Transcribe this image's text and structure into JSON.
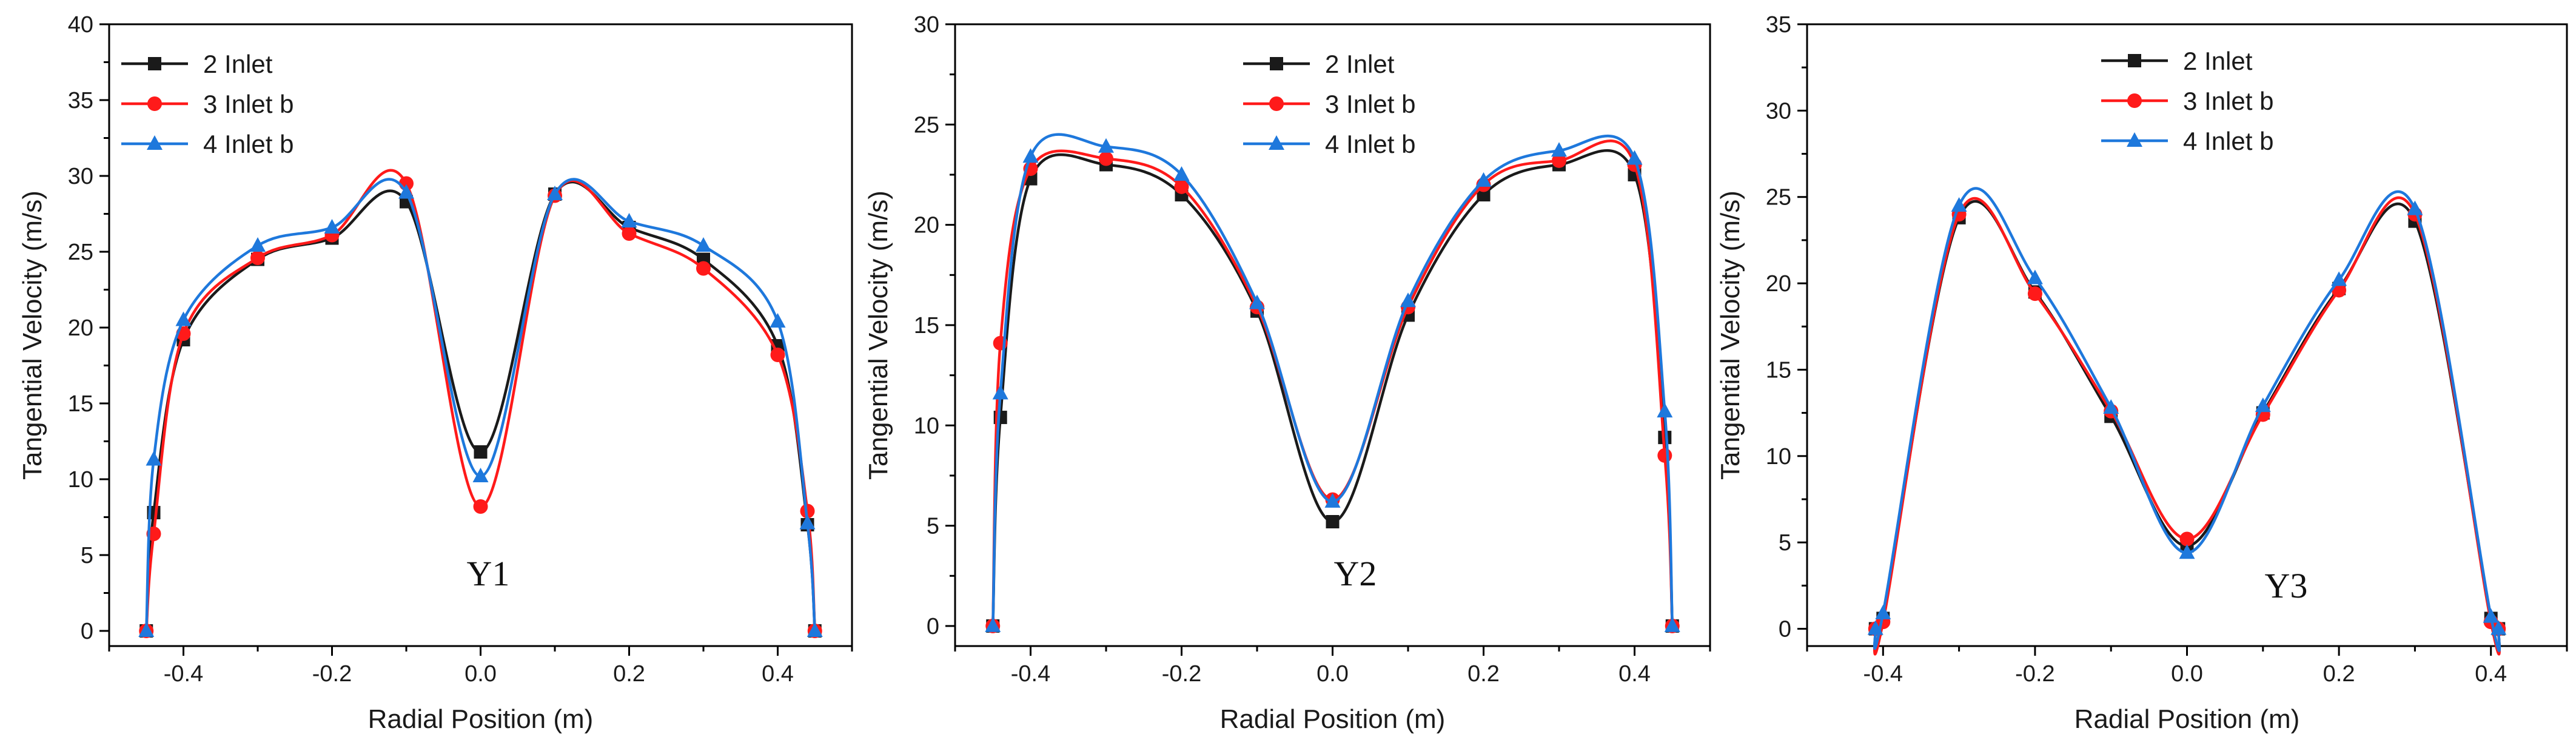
{
  "figure": {
    "colors": {
      "axis": "#000000",
      "s0": "#1a1a1a",
      "s1": "#ff1a1a",
      "s2": "#1e78dc"
    },
    "marker_shapes": [
      "square",
      "circle",
      "triangle"
    ]
  },
  "chart_data": [
    {
      "type": "line",
      "annotation": "Y1",
      "xlabel": "Radial Position (m)",
      "ylabel": "Tangential Velocity (m/s)",
      "xlim": [
        -0.5,
        0.5
      ],
      "ylim": [
        -1,
        40
      ],
      "xticks": [
        -0.4,
        -0.2,
        0.0,
        0.2,
        0.4
      ],
      "xtick_labels": [
        "-0.4",
        "-0.2",
        "0.0",
        "0.2",
        "0.4"
      ],
      "yticks": [
        0,
        5,
        10,
        15,
        20,
        25,
        30,
        35,
        40
      ],
      "ytick_labels": [
        "0",
        "5",
        "10",
        "15",
        "20",
        "25",
        "30",
        "35",
        "40"
      ],
      "legend_position": "top-left",
      "series": [
        {
          "name": "2 Inlet",
          "x": [
            -0.45,
            -0.44,
            -0.4,
            -0.3,
            -0.2,
            -0.1,
            0.0,
            0.1,
            0.2,
            0.3,
            0.4,
            0.44,
            0.45
          ],
          "y": [
            0,
            7.8,
            19.2,
            24.5,
            25.9,
            28.3,
            11.8,
            28.8,
            26.6,
            24.5,
            18.8,
            7.0,
            0
          ]
        },
        {
          "name": "3 Inlet b",
          "x": [
            -0.45,
            -0.44,
            -0.4,
            -0.3,
            -0.2,
            -0.1,
            0.0,
            0.1,
            0.2,
            0.3,
            0.4,
            0.44,
            0.45
          ],
          "y": [
            0,
            6.4,
            19.6,
            24.6,
            26.1,
            29.5,
            8.2,
            28.7,
            26.2,
            23.9,
            18.2,
            7.9,
            0
          ]
        },
        {
          "name": "4 Inlet b",
          "x": [
            -0.45,
            -0.44,
            -0.4,
            -0.3,
            -0.2,
            -0.1,
            0.0,
            0.1,
            0.2,
            0.3,
            0.4,
            0.44,
            0.45
          ],
          "y": [
            0,
            11.3,
            20.5,
            25.4,
            26.6,
            28.9,
            10.2,
            28.8,
            27.0,
            25.4,
            20.4,
            7.1,
            0
          ]
        }
      ]
    },
    {
      "type": "line",
      "annotation": "Y2",
      "xlabel": "Radial Position (m)",
      "ylabel": "Tangential Velocity (m/s)",
      "xlim": [
        -0.5,
        0.5
      ],
      "ylim": [
        -1,
        30
      ],
      "xticks": [
        -0.4,
        -0.2,
        0.0,
        0.2,
        0.4
      ],
      "xtick_labels": [
        "-0.4",
        "-0.2",
        "0.0",
        "0.2",
        "0.4"
      ],
      "yticks": [
        0,
        5,
        10,
        15,
        20,
        25,
        30
      ],
      "ytick_labels": [
        "0",
        "5",
        "10",
        "15",
        "20",
        "25",
        "30"
      ],
      "legend_position": "top-center",
      "series": [
        {
          "name": "2 Inlet",
          "x": [
            -0.45,
            -0.44,
            -0.4,
            -0.3,
            -0.2,
            -0.1,
            0.0,
            0.1,
            0.2,
            0.3,
            0.4,
            0.44,
            0.45
          ],
          "y": [
            0,
            10.4,
            22.3,
            23.0,
            21.5,
            15.7,
            5.2,
            15.5,
            21.5,
            23.0,
            22.5,
            9.4,
            0
          ]
        },
        {
          "name": "3 Inlet b",
          "x": [
            -0.45,
            -0.44,
            -0.4,
            -0.3,
            -0.2,
            -0.1,
            0.0,
            0.1,
            0.2,
            0.3,
            0.4,
            0.44,
            0.45
          ],
          "y": [
            0,
            14.1,
            22.8,
            23.3,
            21.9,
            15.9,
            6.3,
            15.9,
            22.0,
            23.2,
            23.0,
            8.5,
            0
          ]
        },
        {
          "name": "4 Inlet b",
          "x": [
            -0.45,
            -0.44,
            -0.4,
            -0.3,
            -0.2,
            -0.1,
            0.0,
            0.1,
            0.2,
            0.3,
            0.4,
            0.44,
            0.45
          ],
          "y": [
            0,
            11.6,
            23.4,
            23.9,
            22.5,
            16.1,
            6.2,
            16.2,
            22.2,
            23.7,
            23.3,
            10.7,
            0
          ]
        }
      ]
    },
    {
      "type": "line",
      "annotation": "Y3",
      "xlabel": "Radial Position (m)",
      "ylabel": "Tangential Velocity (m/s)",
      "xlim": [
        -0.5,
        0.5
      ],
      "ylim": [
        -1,
        35
      ],
      "xticks": [
        -0.4,
        -0.2,
        0.0,
        0.2,
        0.4
      ],
      "xtick_labels": [
        "-0.4",
        "-0.2",
        "0.0",
        "0.2",
        "0.4"
      ],
      "yticks": [
        0,
        5,
        10,
        15,
        20,
        25,
        30,
        35
      ],
      "ytick_labels": [
        "0",
        "5",
        "10",
        "15",
        "20",
        "25",
        "30",
        "35"
      ],
      "legend_position": "top-center",
      "series": [
        {
          "name": "2 Inlet",
          "x": [
            -0.41,
            -0.4,
            -0.3,
            -0.2,
            -0.1,
            0.0,
            0.1,
            0.2,
            0.3,
            0.4,
            0.41
          ],
          "y": [
            0,
            0.6,
            23.8,
            19.5,
            12.3,
            4.8,
            12.5,
            19.7,
            23.6,
            0.6,
            0
          ]
        },
        {
          "name": "3 Inlet b",
          "x": [
            -0.41,
            -0.4,
            -0.3,
            -0.2,
            -0.1,
            0.0,
            0.1,
            0.2,
            0.3,
            0.4,
            0.41
          ],
          "y": [
            0,
            0.4,
            24.0,
            19.4,
            12.6,
            5.2,
            12.4,
            19.6,
            24.0,
            0.4,
            0
          ]
        },
        {
          "name": "4 Inlet b",
          "x": [
            -0.41,
            -0.4,
            -0.3,
            -0.2,
            -0.1,
            0.0,
            0.1,
            0.2,
            0.3,
            0.4,
            0.41
          ],
          "y": [
            0,
            0.9,
            24.5,
            20.3,
            12.8,
            4.4,
            12.9,
            20.2,
            24.3,
            0.7,
            0
          ]
        }
      ]
    }
  ]
}
